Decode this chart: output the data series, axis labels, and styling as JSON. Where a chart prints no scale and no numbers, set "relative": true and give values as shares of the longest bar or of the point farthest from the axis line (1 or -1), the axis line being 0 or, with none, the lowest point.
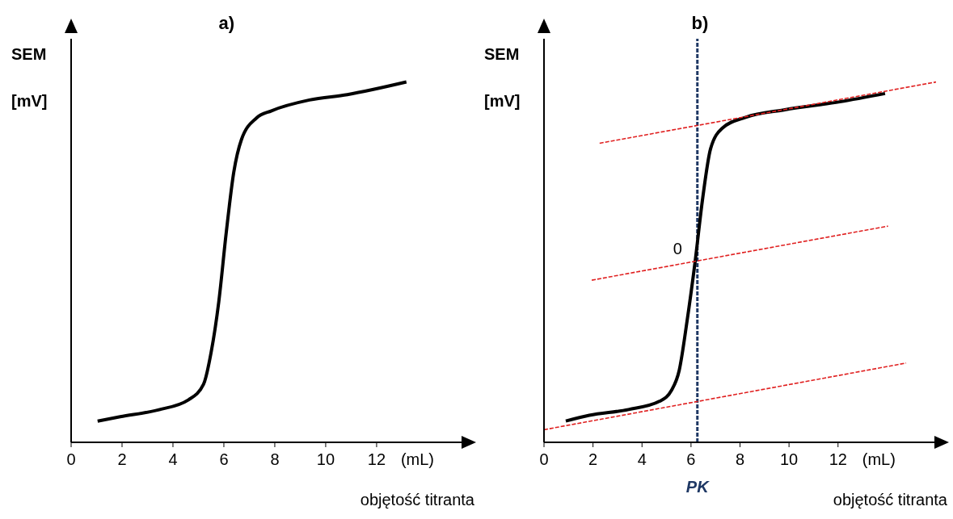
{
  "chart_data": [
    {
      "type": "line",
      "title": "a)",
      "ylabel": "SEM [mV]",
      "xlabel": "objętość titranta",
      "relative": true,
      "xlim": [
        0,
        15.4
      ],
      "xticks": [
        0,
        2,
        4,
        6,
        8,
        10,
        12
      ],
      "annotations": [
        "(mL)"
      ],
      "series": [
        {
          "color": "#000000",
          "x": [
            1.04,
            1.93,
            3.42,
            4.61,
            5.2,
            5.5,
            5.8,
            6.09,
            6.39,
            6.69,
            7.28,
            7.87,
            9.36,
            10.85,
            13.17
          ],
          "values": [
            0.059,
            0.071,
            0.09,
            0.118,
            0.161,
            0.25,
            0.39,
            0.58,
            0.75,
            0.84,
            0.9,
            0.92,
            0.95,
            0.965,
            1
          ]
        }
      ]
    },
    {
      "type": "line",
      "title": "b)",
      "ylabel": "SEM [mV]",
      "xlabel": "objętość titranta",
      "relative": true,
      "xlim": [
        0,
        16
      ],
      "xticks": [
        0,
        2,
        4,
        6,
        8,
        10,
        12
      ],
      "annotations": [
        "(mL)",
        {
          "text": "0",
          "x": 6.26,
          "y": 0.49
        }
      ],
      "ref_lines": [
        {
          "axis": "x",
          "value": 6.26,
          "label": "PK",
          "color": "#1f3864",
          "line_style": "dashed"
        }
      ],
      "series": [
        {
          "color": "#000000",
          "x": [
            0.89,
            1.85,
            3.45,
            4.72,
            5.2,
            5.52,
            5.84,
            6.16,
            6.48,
            6.8,
            7.28,
            8.23,
            9.83,
            12.07,
            13.92
          ],
          "values": [
            0.059,
            0.075,
            0.091,
            0.114,
            0.144,
            0.2,
            0.337,
            0.497,
            0.679,
            0.815,
            0.872,
            0.902,
            0.923,
            0.945,
            0.968
          ]
        },
        {
          "type": "line",
          "color": "#e02020",
          "line_style": "dashed",
          "x": [
            0,
            14.78
          ],
          "values": [
            0.035,
            0.22
          ]
        },
        {
          "type": "line",
          "color": "#e02020",
          "line_style": "dashed",
          "x": [
            1.95,
            14.04
          ],
          "values": [
            0.45,
            0.6
          ]
        },
        {
          "type": "line",
          "color": "#e02020",
          "line_style": "dashed",
          "x": [
            2.27,
            16
          ],
          "values": [
            0.83,
            1
          ]
        }
      ]
    }
  ]
}
